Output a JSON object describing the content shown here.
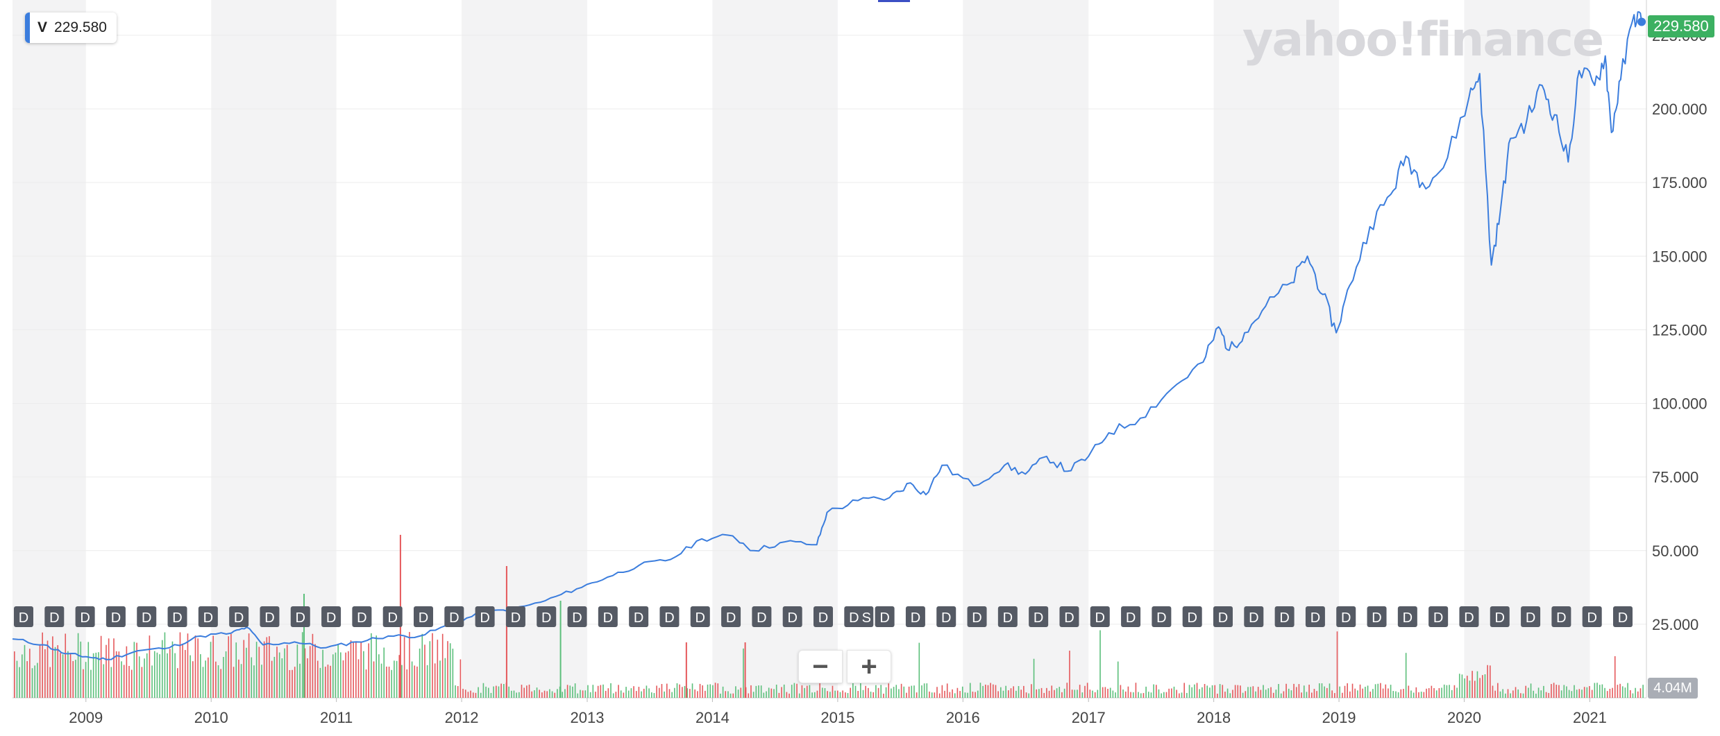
{
  "legend": {
    "symbol": "V",
    "value": "229.580"
  },
  "watermark": "yahoo!finance",
  "price_tag": "229.580",
  "volume_tag": "4.04M",
  "zoom": {
    "minus": "−",
    "plus": "+"
  },
  "colors": {
    "line": "#3b7ddd",
    "up_volume": "#5bbf7a",
    "down_volume": "#e5585b",
    "band": "#f3f3f4",
    "grid": "#ececec",
    "price_tag": "#3cb061",
    "dividend_marker": "#555a64"
  },
  "chart_data": {
    "type": "line",
    "symbol": "V",
    "x_axis": {
      "type": "date",
      "range": [
        "2008-06-01",
        "2021-06-15"
      ],
      "tick_labels": [
        "2009",
        "2010",
        "2011",
        "2012",
        "2013",
        "2014",
        "2015",
        "2016",
        "2017",
        "2018",
        "2019",
        "2020",
        "2021"
      ]
    },
    "y_axis": {
      "position": "right",
      "range": [
        0,
        237
      ],
      "tick_labels": [
        "25.000",
        "50.000",
        "75.000",
        "100.000",
        "125.000",
        "150.000",
        "175.000",
        "200.000",
        "225.000"
      ]
    },
    "grid": true,
    "alternating_year_bands": true,
    "series": [
      {
        "kind": "price",
        "points": [
          [
            "2008-06-01",
            20
          ],
          [
            "2008-09-01",
            18
          ],
          [
            "2008-11-01",
            15
          ],
          [
            "2009-01-01",
            14
          ],
          [
            "2009-03-01",
            13
          ],
          [
            "2009-06-01",
            16
          ],
          [
            "2009-09-01",
            17
          ],
          [
            "2009-12-01",
            21
          ],
          [
            "2010-03-01",
            22
          ],
          [
            "2010-04-15",
            24
          ],
          [
            "2010-06-01",
            18
          ],
          [
            "2010-09-01",
            19
          ],
          [
            "2010-12-01",
            17
          ],
          [
            "2011-03-01",
            19
          ],
          [
            "2011-06-01",
            21
          ],
          [
            "2011-09-01",
            21
          ],
          [
            "2011-12-01",
            25
          ],
          [
            "2012-03-01",
            29
          ],
          [
            "2012-06-01",
            30
          ],
          [
            "2012-09-01",
            33
          ],
          [
            "2012-12-01",
            37
          ],
          [
            "2013-03-01",
            41
          ],
          [
            "2013-06-01",
            45
          ],
          [
            "2013-09-01",
            47
          ],
          [
            "2013-12-01",
            54
          ],
          [
            "2014-03-01",
            55
          ],
          [
            "2014-05-01",
            50
          ],
          [
            "2014-08-01",
            53
          ],
          [
            "2014-11-01",
            52
          ],
          [
            "2014-12-01",
            63
          ],
          [
            "2015-03-01",
            67
          ],
          [
            "2015-06-01",
            68
          ],
          [
            "2015-08-01",
            73
          ],
          [
            "2015-09-15",
            69
          ],
          [
            "2015-11-01",
            79
          ],
          [
            "2016-02-01",
            72
          ],
          [
            "2016-05-01",
            79
          ],
          [
            "2016-07-01",
            76
          ],
          [
            "2016-09-01",
            82
          ],
          [
            "2016-11-01",
            77
          ],
          [
            "2017-01-01",
            82
          ],
          [
            "2017-03-01",
            90
          ],
          [
            "2017-06-01",
            95
          ],
          [
            "2017-09-01",
            105
          ],
          [
            "2017-12-01",
            114
          ],
          [
            "2018-01-15",
            126
          ],
          [
            "2018-02-15",
            118
          ],
          [
            "2018-04-01",
            124
          ],
          [
            "2018-06-01",
            133
          ],
          [
            "2018-08-15",
            141
          ],
          [
            "2018-10-01",
            150
          ],
          [
            "2018-11-15",
            137
          ],
          [
            "2018-12-24",
            124
          ],
          [
            "2019-02-01",
            140
          ],
          [
            "2019-04-01",
            160
          ],
          [
            "2019-06-01",
            171
          ],
          [
            "2019-07-15",
            184
          ],
          [
            "2019-09-01",
            175
          ],
          [
            "2019-11-01",
            180
          ],
          [
            "2020-01-15",
            204
          ],
          [
            "2020-02-15",
            212
          ],
          [
            "2020-03-20",
            147
          ],
          [
            "2020-04-15",
            165
          ],
          [
            "2020-05-15",
            190
          ],
          [
            "2020-07-01",
            196
          ],
          [
            "2020-08-15",
            208
          ],
          [
            "2020-09-20",
            198
          ],
          [
            "2020-10-30",
            182
          ],
          [
            "2020-12-01",
            213
          ],
          [
            "2021-01-15",
            208
          ],
          [
            "2021-02-15",
            218
          ],
          [
            "2021-03-05",
            192
          ],
          [
            "2021-04-01",
            210
          ],
          [
            "2021-05-10",
            232
          ],
          [
            "2021-06-01",
            229.58
          ]
        ]
      }
    ],
    "volume": {
      "label": "4.04M",
      "note": "relative volume bars (red = down, green = up); approximate"
    },
    "dividend_markers": {
      "label": "D",
      "split_label": "S",
      "count": 53
    },
    "last_price": "229.580"
  }
}
